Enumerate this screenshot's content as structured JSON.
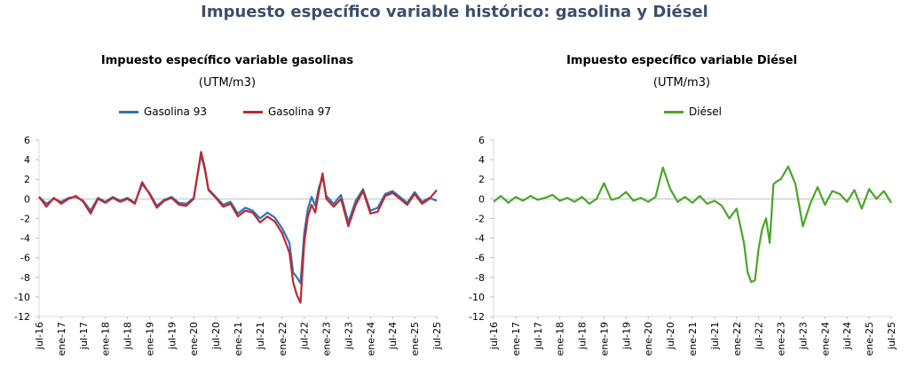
{
  "page": {
    "title": "Impuesto específico variable histórico: gasolina y Diésel"
  },
  "chart_data": [
    {
      "type": "line",
      "title": "Impuesto específico variable gasolinas",
      "subtitle": "(UTM/m3)",
      "ylim": [
        -12,
        6
      ],
      "yticks": [
        -12,
        -10,
        -8,
        -6,
        -4,
        -2,
        0,
        2,
        4,
        6
      ],
      "categories": [
        "jul-16",
        "ene-17",
        "jul-17",
        "ene-18",
        "jul-18",
        "ene-19",
        "jul-19",
        "ene-20",
        "jul-20",
        "ene-21",
        "jul-21",
        "ene-22",
        "jul-22",
        "ene-23",
        "jul-23",
        "ene-24",
        "jul-24",
        "ene-25",
        "jul-25"
      ],
      "legend_position": "top",
      "grid": "zero-line-only",
      "series": [
        {
          "name": "Gasolina 93",
          "color": "#2e75b6",
          "x": [
            "2016-07",
            "2016-09",
            "2016-11",
            "2017-01",
            "2017-03",
            "2017-05",
            "2017-07",
            "2017-09",
            "2017-11",
            "2018-01",
            "2018-03",
            "2018-05",
            "2018-07",
            "2018-09",
            "2018-11",
            "2019-01",
            "2019-03",
            "2019-05",
            "2019-07",
            "2019-09",
            "2019-11",
            "2020-01",
            "2020-03",
            "2020-04",
            "2020-05",
            "2020-07",
            "2020-09",
            "2020-11",
            "2021-01",
            "2021-03",
            "2021-05",
            "2021-07",
            "2021-09",
            "2021-11",
            "2022-01",
            "2022-03",
            "2022-04",
            "2022-05",
            "2022-06",
            "2022-07",
            "2022-08",
            "2022-09",
            "2022-10",
            "2022-11",
            "2022-12",
            "2023-01",
            "2023-03",
            "2023-05",
            "2023-07",
            "2023-09",
            "2023-11",
            "2024-01",
            "2024-03",
            "2024-05",
            "2024-07",
            "2024-09",
            "2024-11",
            "2025-01",
            "2025-03",
            "2025-05",
            "2025-07"
          ],
          "y": [
            0.2,
            -0.5,
            0.0,
            -0.3,
            0.1,
            0.2,
            -0.2,
            -1.2,
            0.1,
            -0.3,
            0.2,
            -0.2,
            0.1,
            -0.4,
            1.5,
            0.6,
            -0.7,
            -0.1,
            0.2,
            -0.4,
            -0.5,
            0.1,
            4.5,
            3.0,
            1.0,
            0.2,
            -0.6,
            -0.3,
            -1.5,
            -0.9,
            -1.2,
            -2.0,
            -1.4,
            -1.9,
            -3.0,
            -4.5,
            -7.5,
            -8.0,
            -8.6,
            -3.5,
            -1.0,
            0.2,
            -0.7,
            1.2,
            2.2,
            0.3,
            -0.5,
            0.4,
            -2.4,
            -0.2,
            1.0,
            -1.2,
            -0.9,
            0.5,
            0.8,
            0.2,
            -0.4,
            0.7,
            -0.3,
            0.1,
            -0.2
          ]
        },
        {
          "name": "Gasolina 97",
          "color": "#c0272d",
          "x": [
            "2016-07",
            "2016-09",
            "2016-11",
            "2017-01",
            "2017-03",
            "2017-05",
            "2017-07",
            "2017-09",
            "2017-11",
            "2018-01",
            "2018-03",
            "2018-05",
            "2018-07",
            "2018-09",
            "2018-11",
            "2019-01",
            "2019-03",
            "2019-05",
            "2019-07",
            "2019-09",
            "2019-11",
            "2020-01",
            "2020-03",
            "2020-04",
            "2020-05",
            "2020-07",
            "2020-09",
            "2020-11",
            "2021-01",
            "2021-03",
            "2021-05",
            "2021-07",
            "2021-09",
            "2021-11",
            "2022-01",
            "2022-03",
            "2022-04",
            "2022-05",
            "2022-06",
            "2022-07",
            "2022-08",
            "2022-09",
            "2022-10",
            "2022-11",
            "2022-12",
            "2023-01",
            "2023-03",
            "2023-05",
            "2023-07",
            "2023-09",
            "2023-11",
            "2024-01",
            "2024-03",
            "2024-05",
            "2024-07",
            "2024-09",
            "2024-11",
            "2025-01",
            "2025-03",
            "2025-05",
            "2025-07"
          ],
          "y": [
            0.2,
            -0.8,
            0.1,
            -0.5,
            0.0,
            0.3,
            -0.3,
            -1.5,
            0.0,
            -0.4,
            0.1,
            -0.3,
            0.0,
            -0.5,
            1.7,
            0.5,
            -0.9,
            -0.2,
            0.1,
            -0.6,
            -0.7,
            0.0,
            4.8,
            3.2,
            0.9,
            0.1,
            -0.8,
            -0.5,
            -1.8,
            -1.2,
            -1.4,
            -2.4,
            -1.8,
            -2.3,
            -3.5,
            -5.5,
            -8.5,
            -9.8,
            -10.6,
            -4.5,
            -1.8,
            -0.6,
            -1.4,
            0.8,
            2.6,
            0.0,
            -0.8,
            0.0,
            -2.8,
            -0.6,
            0.8,
            -1.5,
            -1.3,
            0.3,
            0.6,
            0.0,
            -0.6,
            0.5,
            -0.5,
            0.0,
            0.9
          ]
        }
      ]
    },
    {
      "type": "line",
      "title": "Impuesto específico variable Diésel",
      "subtitle": "(UTM/m3)",
      "ylim": [
        -12,
        6
      ],
      "yticks": [
        -12,
        -10,
        -8,
        -6,
        -4,
        -2,
        0,
        2,
        4,
        6
      ],
      "categories": [
        "jul-16",
        "ene-17",
        "jul-17",
        "ene-18",
        "jul-18",
        "ene-19",
        "jul-19",
        "ene-20",
        "jul-20",
        "ene-21",
        "jul-21",
        "ene-22",
        "jul-22",
        "ene-23",
        "jul-23",
        "ene-24",
        "jul-24",
        "ene-25",
        "jul-25"
      ],
      "legend_position": "top",
      "grid": "zero-line-only",
      "series": [
        {
          "name": "Diésel",
          "color": "#4aa629",
          "x": [
            "2016-07",
            "2016-09",
            "2016-11",
            "2017-01",
            "2017-03",
            "2017-05",
            "2017-07",
            "2017-09",
            "2017-11",
            "2018-01",
            "2018-03",
            "2018-05",
            "2018-07",
            "2018-09",
            "2018-11",
            "2019-01",
            "2019-03",
            "2019-05",
            "2019-07",
            "2019-09",
            "2019-11",
            "2020-01",
            "2020-03",
            "2020-05",
            "2020-07",
            "2020-09",
            "2020-11",
            "2021-01",
            "2021-03",
            "2021-05",
            "2021-07",
            "2021-09",
            "2021-11",
            "2022-01",
            "2022-03",
            "2022-04",
            "2022-05",
            "2022-06",
            "2022-07",
            "2022-08",
            "2022-09",
            "2022-10",
            "2022-11",
            "2022-12",
            "2023-01",
            "2023-03",
            "2023-05",
            "2023-07",
            "2023-09",
            "2023-11",
            "2024-01",
            "2024-03",
            "2024-05",
            "2024-07",
            "2024-09",
            "2024-11",
            "2025-01",
            "2025-03",
            "2025-05",
            "2025-07"
          ],
          "y": [
            -0.3,
            0.3,
            -0.4,
            0.2,
            -0.2,
            0.3,
            -0.1,
            0.1,
            0.4,
            -0.2,
            0.1,
            -0.3,
            0.2,
            -0.5,
            0.0,
            1.6,
            -0.1,
            0.1,
            0.7,
            -0.2,
            0.1,
            -0.3,
            0.2,
            3.2,
            1.0,
            -0.3,
            0.2,
            -0.4,
            0.3,
            -0.5,
            -0.2,
            -0.7,
            -2.0,
            -1.0,
            -4.5,
            -7.5,
            -8.5,
            -8.3,
            -5.0,
            -3.0,
            -2.0,
            -4.5,
            1.5,
            1.8,
            2.0,
            3.3,
            1.5,
            -2.8,
            -0.5,
            1.2,
            -0.6,
            0.8,
            0.5,
            -0.3,
            0.9,
            -1.0,
            1.0,
            0.0,
            0.8,
            -0.4
          ]
        }
      ]
    }
  ]
}
